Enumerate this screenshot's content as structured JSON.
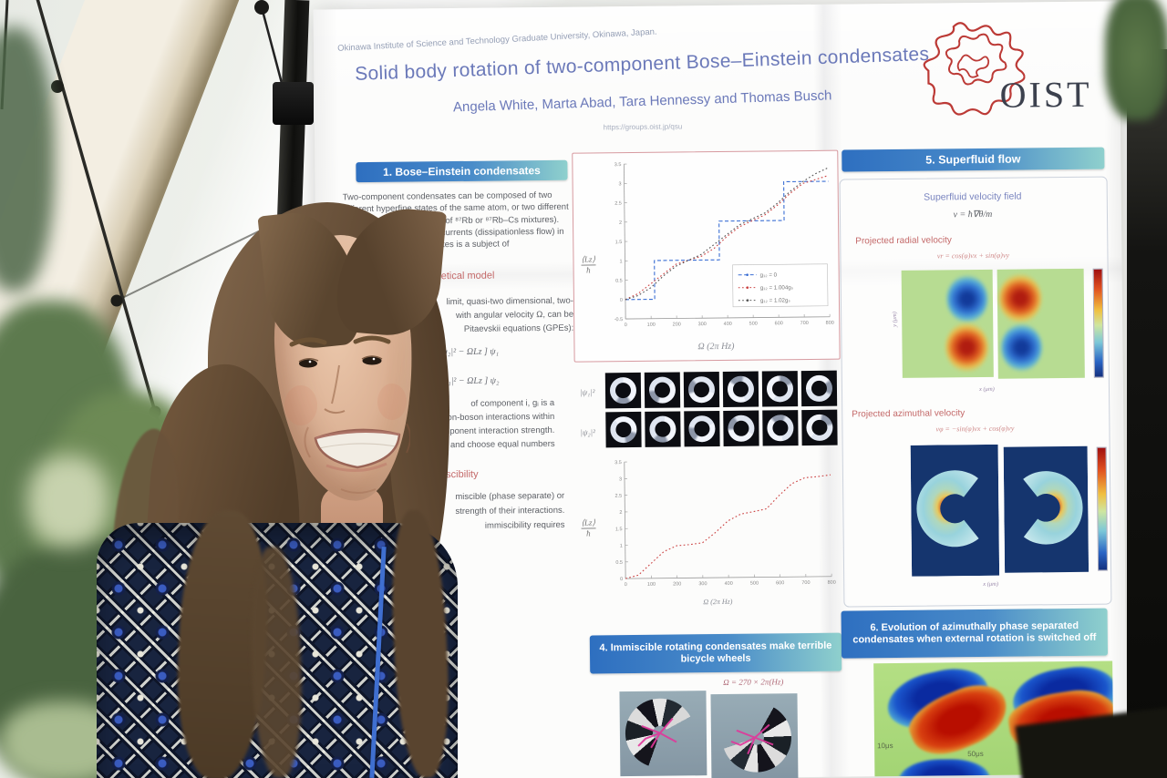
{
  "colors": {
    "header_gradient_left": "#2e6fc0",
    "header_gradient_right": "#8fd0cd",
    "poster_text_blue": "#6b79b9",
    "red_heading": "#c46a6a",
    "oist_red": "#bc3a36",
    "chart_frame_pink": "#d79aa0",
    "series_blue": "#3b6fd4",
    "series_red": "#cc4444",
    "series_dark": "#555555",
    "fig_green_bg": "#b7dc92",
    "fig_navy_bg": "#15356e",
    "panel6_green": "#aede7e",
    "crescent_blue": "#1a55cc",
    "crescent_red": "#cc2211",
    "pinwheel_bg": "#93a7b2",
    "magenta": "#e0369a"
  },
  "poster": {
    "affiliation": "Okinawa Institute of Science and Technology Graduate University, Okinawa, Japan.",
    "title": "Solid body rotation of two-component Bose–Einstein condensates",
    "authors": "Angela White, Marta Abad, Tara Hennessy and Thomas Busch",
    "url": "https://groups.oist.jp/qsu",
    "logo_text": "OIST",
    "s1": {
      "heading": "1. Bose–Einstein condensates",
      "body": "Two-component condensates can be composed of two different hyperfine states of the same atom, or two different atoms (i.e. two spin states of ⁸⁷Rb or ⁸⁷Rb–Cs mixtures).  The stability of persistent currents (dissipationless flow) in two-component condensates is a subject of"
    },
    "s2": {
      "heading": "2. Theoretical model",
      "lines": [
        "limit, quasi-two dimensional, two-",
        "with angular velocity Ω, can be",
        "Pitaevskii equations (GPEs):"
      ],
      "eq1": "g₁|ψ₁|² + g₁₂|ψ₂|² − ΩLz ] ψ₁",
      "eq2": "g₂|ψ₂|² + g₁₂|ψ₁|² − ΩLz ] ψ₂",
      "lines2": [
        "of component i, gᵢ is a",
        "boson-boson interactions within",
        "component interaction strength.",
        "and choose equal numbers"
      ]
    },
    "s3": {
      "heading": "3. Miscibility",
      "lines": [
        "miscible (phase separate) or",
        "strength of their interactions.",
        "immiscibility requires"
      ]
    },
    "ring_grid": {
      "rows": 2,
      "cols": 6
    },
    "psi1": "|ψ₁|²",
    "psi2": "|ψ₂|²",
    "s4": {
      "heading": "4. Immiscible rotating condensates make terrible bicycle wheels",
      "omega_label": "Ω = 270 × 2π(Hz)"
    },
    "s5": {
      "heading": "5. Superfluid flow",
      "sub1": "Superfluid velocity field",
      "eq1": "v = ħ∇θ/m",
      "radial": "Projected radial velocity",
      "radial_eq": "vr = cos(φ)vx + sin(φ)vy",
      "azimuthal": "Projected azimuthal velocity",
      "azimuthal_eq": "vφ = −sin(φ)vx + cos(φ)vy",
      "xaxis": "x (μm)",
      "yaxis": "y (μm)"
    },
    "s6": {
      "heading": "6. Evolution of azimuthally phase separated condensates when external rotation is switched off",
      "label1": "10μs",
      "label2": "50μs"
    }
  },
  "chart_data": [
    {
      "type": "line",
      "title": "",
      "xlabel": "Ω (2π Hz)",
      "ylabel_num": "⟨Lz⟩",
      "ylabel_den": "ħ",
      "xlim": [
        0,
        800
      ],
      "ylim": [
        -0.5,
        3.5
      ],
      "xticks": [
        0,
        100,
        200,
        300,
        400,
        500,
        600,
        700,
        800
      ],
      "yticks": [
        -0.5,
        0,
        0.5,
        1,
        1.5,
        2,
        2.5,
        3,
        3.5
      ],
      "legend": true,
      "legend_position": "lower right",
      "series": [
        {
          "name": "g₁₂ = 0",
          "color": "#3b6fd4",
          "style": "step",
          "x": [
            0,
            115,
            115,
            370,
            370,
            625,
            625,
            800
          ],
          "y": [
            0,
            0,
            1,
            1,
            2,
            2,
            3,
            3
          ]
        },
        {
          "name": "g₁₂ = 1.004gₛ",
          "color": "#cc4444",
          "style": "dotted",
          "x": [
            0,
            50,
            100,
            150,
            200,
            250,
            300,
            350,
            400,
            450,
            500,
            550,
            600,
            650,
            700,
            750,
            800
          ],
          "y": [
            0,
            0.15,
            0.4,
            0.65,
            0.9,
            1.0,
            1.1,
            1.3,
            1.6,
            1.85,
            2.0,
            2.15,
            2.4,
            2.7,
            2.95,
            3.05,
            3.15
          ]
        },
        {
          "name": "g₁₂ = 1.02gₛ",
          "color": "#555555",
          "style": "dotted",
          "x": [
            0,
            50,
            100,
            150,
            200,
            250,
            300,
            350,
            400,
            450,
            500,
            550,
            600,
            650,
            700,
            750,
            800
          ],
          "y": [
            0,
            0.1,
            0.3,
            0.6,
            0.85,
            1.0,
            1.15,
            1.4,
            1.65,
            1.9,
            2.05,
            2.2,
            2.45,
            2.75,
            3.0,
            3.2,
            3.35
          ]
        }
      ]
    },
    {
      "type": "line",
      "title": "",
      "xlabel": "Ω (2π Hz)",
      "ylabel_num": "⟨Lz⟩",
      "ylabel_den": "ħ",
      "xlim": [
        0,
        800
      ],
      "ylim": [
        0,
        3.5
      ],
      "xticks": [
        0,
        100,
        200,
        300,
        400,
        500,
        600,
        700,
        800
      ],
      "yticks": [
        0,
        0.5,
        1,
        1.5,
        2,
        2.5,
        3,
        3.5
      ],
      "legend": false,
      "series": [
        {
          "name": "g₁₂ = 1.004gₛ",
          "color": "#cc4444",
          "style": "dotted",
          "x": [
            0,
            50,
            100,
            150,
            200,
            250,
            300,
            350,
            400,
            450,
            500,
            550,
            600,
            650,
            700,
            750,
            800
          ],
          "y": [
            0,
            0.1,
            0.45,
            0.8,
            0.97,
            1.0,
            1.05,
            1.35,
            1.7,
            1.9,
            1.97,
            2.05,
            2.45,
            2.8,
            2.97,
            3.0,
            3.05
          ]
        }
      ]
    }
  ]
}
